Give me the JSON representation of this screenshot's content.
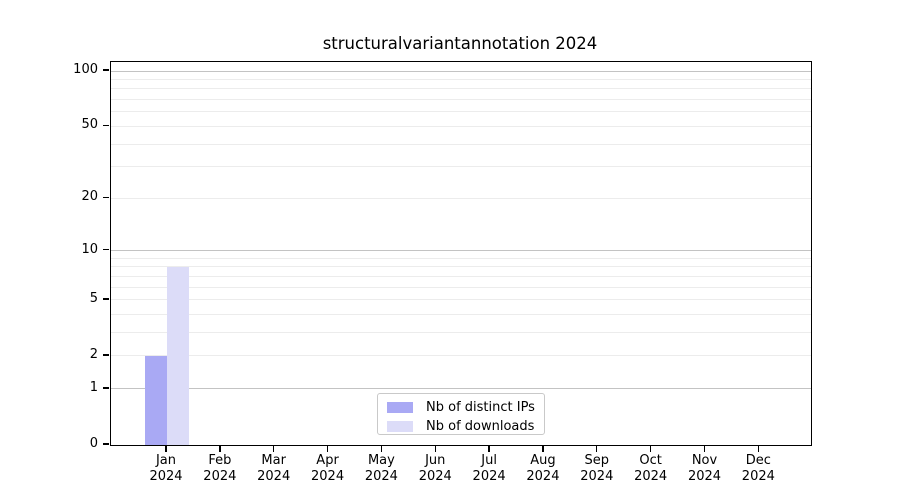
{
  "chart_data": {
    "type": "bar",
    "title": "structuralvariantannotation 2024",
    "months": [
      "Jan",
      "Feb",
      "Mar",
      "Apr",
      "May",
      "Jun",
      "Jul",
      "Aug",
      "Sep",
      "Oct",
      "Nov",
      "Dec"
    ],
    "year_label": "2024",
    "series": [
      {
        "name": "Nb of distinct IPs",
        "color": "#a9a9f4",
        "values": [
          2,
          0,
          0,
          0,
          0,
          0,
          0,
          0,
          0,
          0,
          0,
          0
        ]
      },
      {
        "name": "Nb of downloads",
        "color": "#dcdcf8",
        "values": [
          8,
          0,
          0,
          0,
          0,
          0,
          0,
          0,
          0,
          0,
          0,
          0
        ]
      }
    ],
    "y_ticks": [
      0,
      1,
      2,
      5,
      10,
      20,
      50,
      100
    ],
    "y_scale": "log1p",
    "ylim": [
      0,
      112
    ],
    "grid": "horizontal-only",
    "legend_position": "bottom-center-inside"
  },
  "colors": {
    "background": "#ffffff",
    "axis": "#000000",
    "grid_major": "#c3c3c3",
    "grid_minor": "#ececec",
    "legend_border": "#c9c9c9",
    "text": "#000000"
  }
}
